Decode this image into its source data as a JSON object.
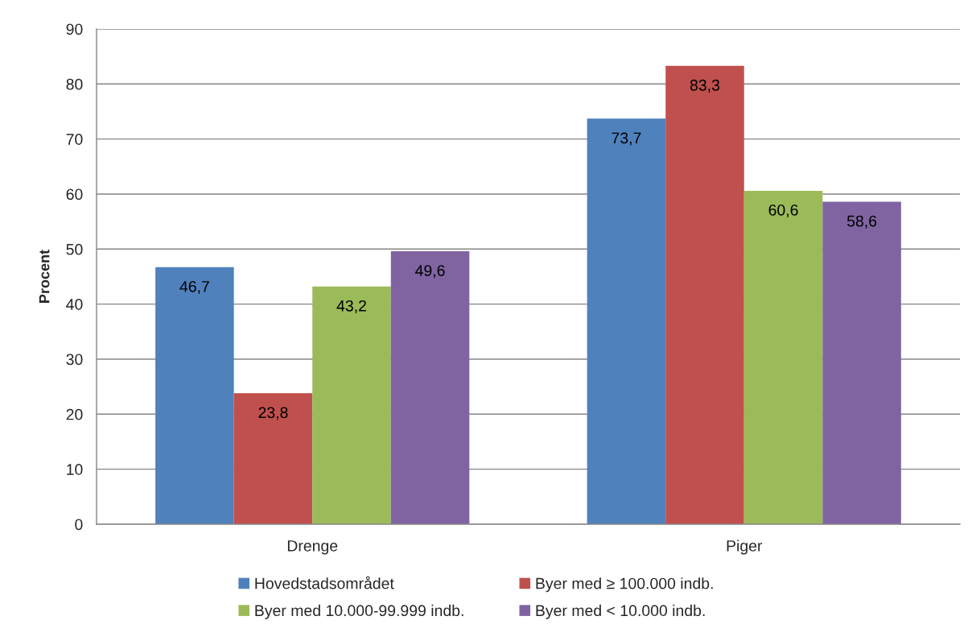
{
  "chart_data": {
    "type": "bar",
    "ylabel": "Procent",
    "categories": [
      "Drenge",
      "Piger"
    ],
    "series": [
      {
        "name": "Hovedstadsområdet",
        "color": "#4f81bd",
        "values": [
          46.7,
          73.7
        ],
        "value_labels": [
          "46,7",
          "73,7"
        ]
      },
      {
        "name": "Byer med ≥ 100.000 indb.",
        "color": "#c0504d",
        "values": [
          23.8,
          83.3
        ],
        "value_labels": [
          "23,8",
          "83,3"
        ]
      },
      {
        "name": "Byer med 10.000-99.999 indb.",
        "color": "#9bbb59",
        "values": [
          43.2,
          60.6
        ],
        "value_labels": [
          "43,2",
          "60,6"
        ]
      },
      {
        "name": "Byer med < 10.000 indb.",
        "color": "#8064a2",
        "values": [
          49.6,
          58.6
        ],
        "value_labels": [
          "49,6",
          "58,6"
        ]
      }
    ],
    "ylim": [
      0,
      90
    ],
    "yticks": [
      0,
      10,
      20,
      30,
      40,
      50,
      60,
      70,
      80,
      90
    ],
    "grid": "y",
    "legend": "bottom"
  }
}
